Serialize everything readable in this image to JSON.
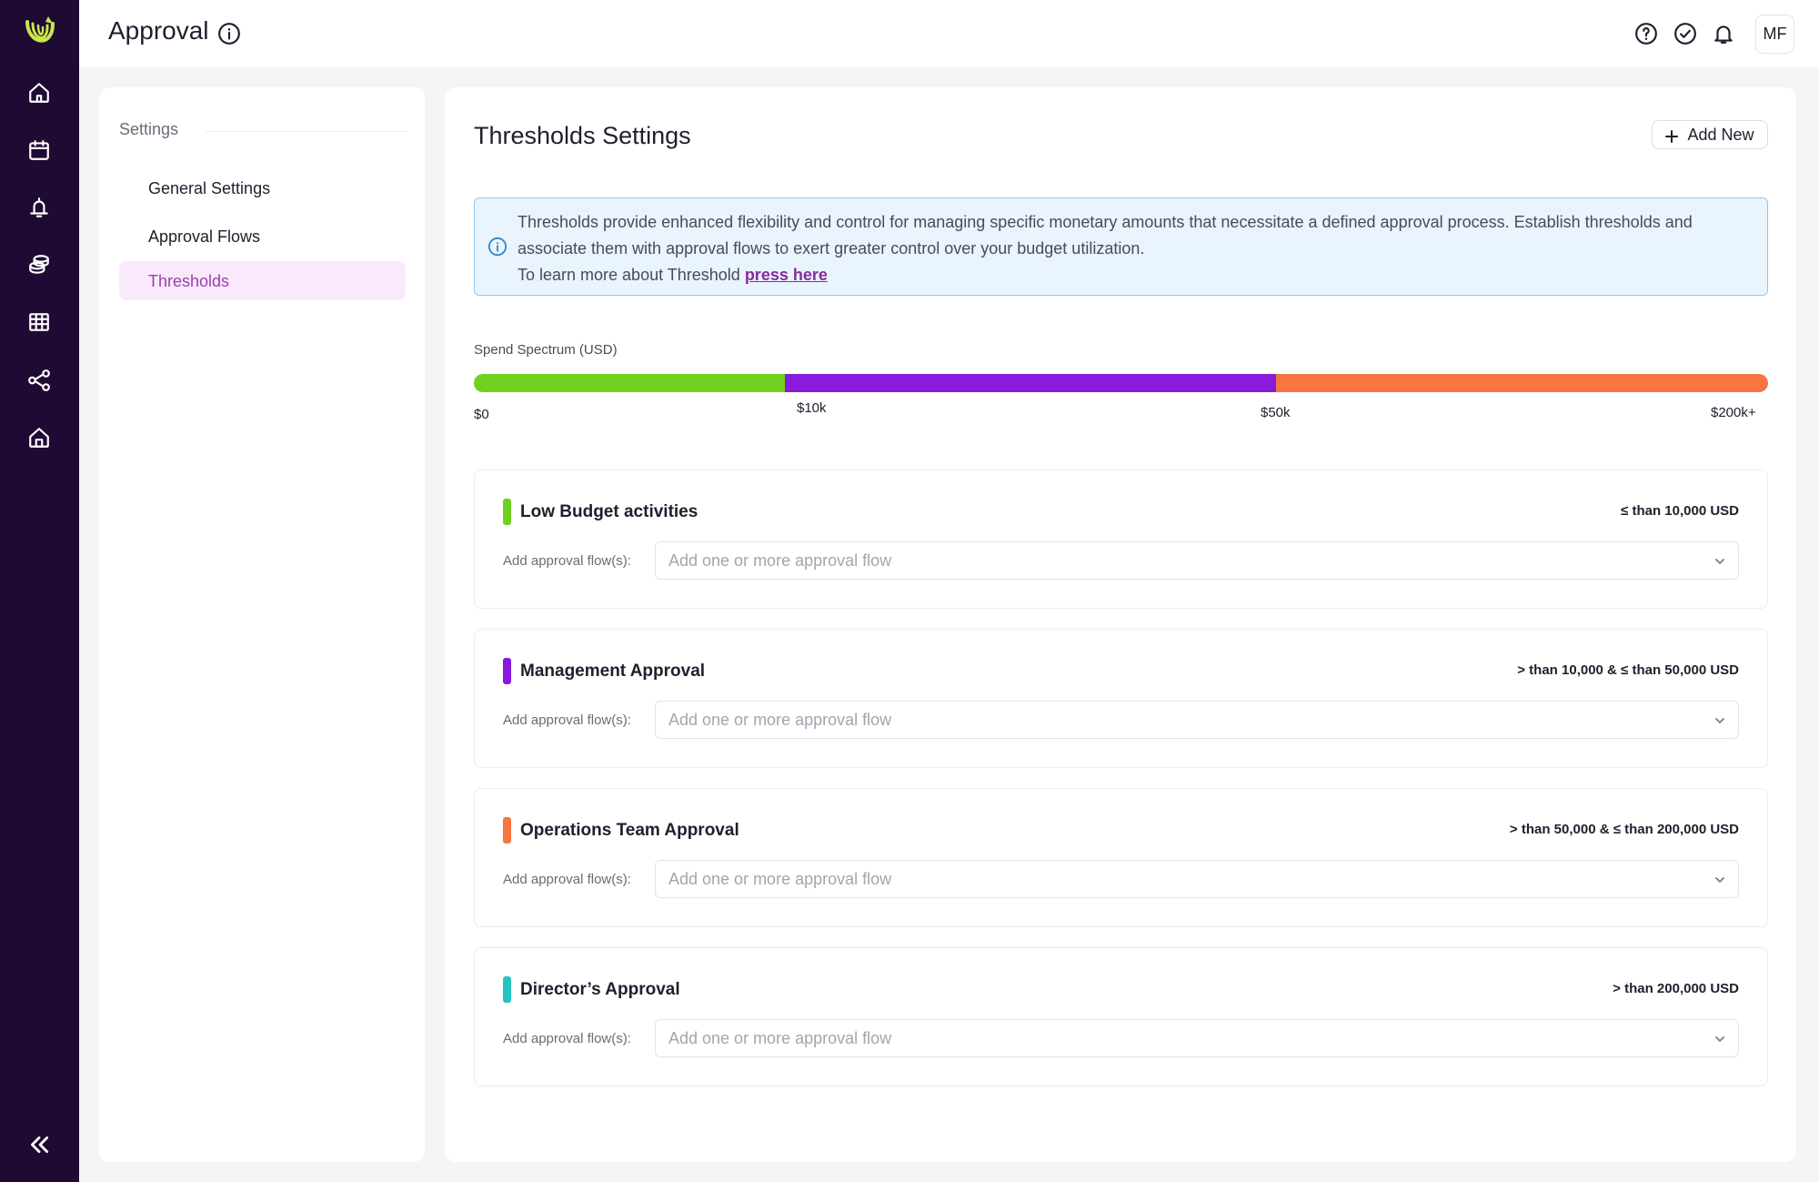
{
  "header": {
    "title": "Approval",
    "avatar_initials": "MF",
    "icons": [
      "help-icon",
      "check-circle-icon",
      "bell-icon"
    ]
  },
  "rail": {
    "icons": [
      "home-icon",
      "calendar-icon",
      "bell-tower-icon",
      "coins-icon",
      "table-icon",
      "share-nodes-icon",
      "store-icon"
    ],
    "collapse_icon": "double-chevron-left-icon"
  },
  "settings": {
    "heading": "Settings",
    "items": [
      {
        "label": "General Settings",
        "active": false
      },
      {
        "label": "Approval Flows",
        "active": false
      },
      {
        "label": "Thresholds",
        "active": true
      }
    ]
  },
  "main": {
    "title": "Thresholds Settings",
    "add_new_label": "Add New",
    "info": {
      "line1": "Thresholds provide enhanced flexibility and control for managing specific monetary amounts that necessitate a defined approval process. Establish thresholds and associate them with approval flows to exert greater control over your budget utilization.",
      "line2_prefix": "To learn more about Threshold ",
      "link_text": "press here"
    },
    "spectrum": {
      "label": "Spend Spectrum (USD)",
      "ticks": [
        "$0",
        "$10k",
        "$50k",
        "$200k+"
      ],
      "segments": [
        {
          "color": "#6fd11c",
          "share": 0.24
        },
        {
          "color": "#8a1bdc",
          "share": 0.38
        },
        {
          "color": "#f87440",
          "share": 0.38
        }
      ]
    },
    "flow_label": "Add approval flow(s):",
    "flow_placeholder": "Add one or more approval flow",
    "thresholds": [
      {
        "name": "Low Budget activities",
        "range": "≤ than 10,000 USD",
        "color": "#6fd11c"
      },
      {
        "name": "Management Approval",
        "range": "> than 10,000 & ≤ than 50,000 USD",
        "color": "#8a1bdc"
      },
      {
        "name": "Operations Team Approval",
        "range": "> than 50,000 & ≤ than 200,000 USD",
        "color": "#f87440"
      },
      {
        "name": "Director’s Approval",
        "range": "> than 200,000 USD",
        "color": "#26c2c2"
      }
    ]
  }
}
